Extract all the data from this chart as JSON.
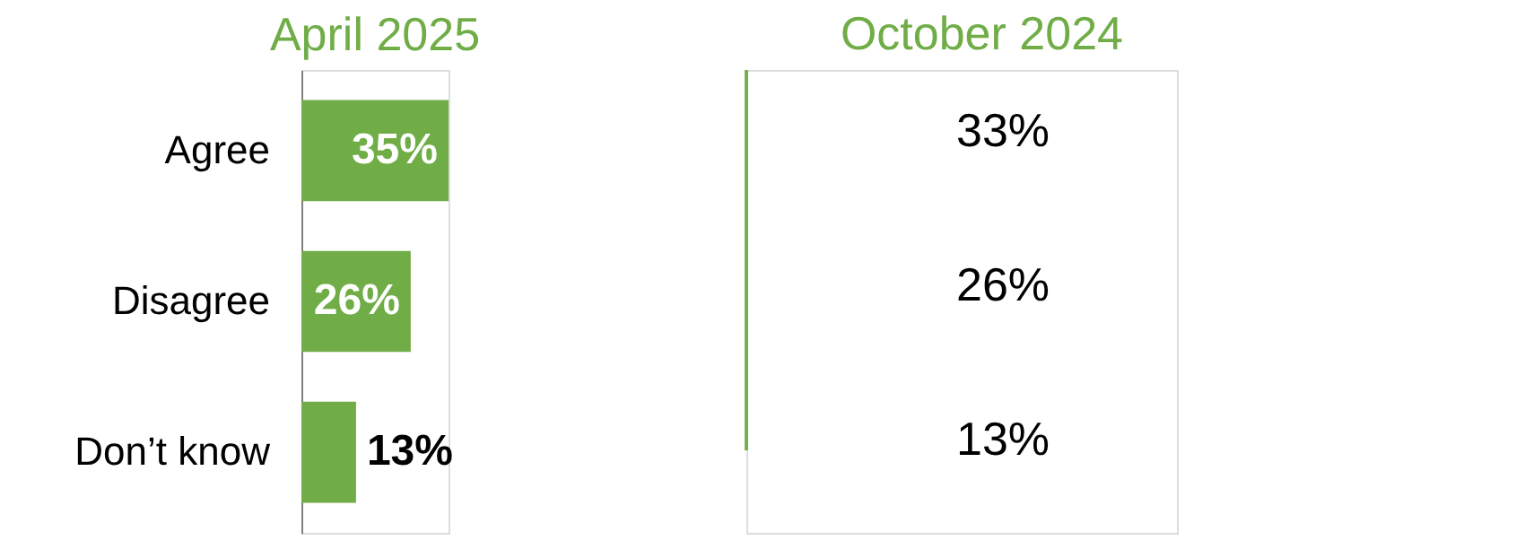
{
  "chart_data": [
    {
      "type": "bar",
      "orientation": "horizontal",
      "title": "April 2025",
      "categories": [
        "Agree",
        "Disagree",
        "Don’t know"
      ],
      "values": [
        35,
        26,
        13
      ],
      "color": "#70ad47",
      "value_labels": [
        "35%",
        "26%",
        "13%"
      ]
    },
    {
      "type": "other",
      "title": "October 2024",
      "annotations": [
        "33%",
        "26%",
        "13%"
      ]
    }
  ]
}
